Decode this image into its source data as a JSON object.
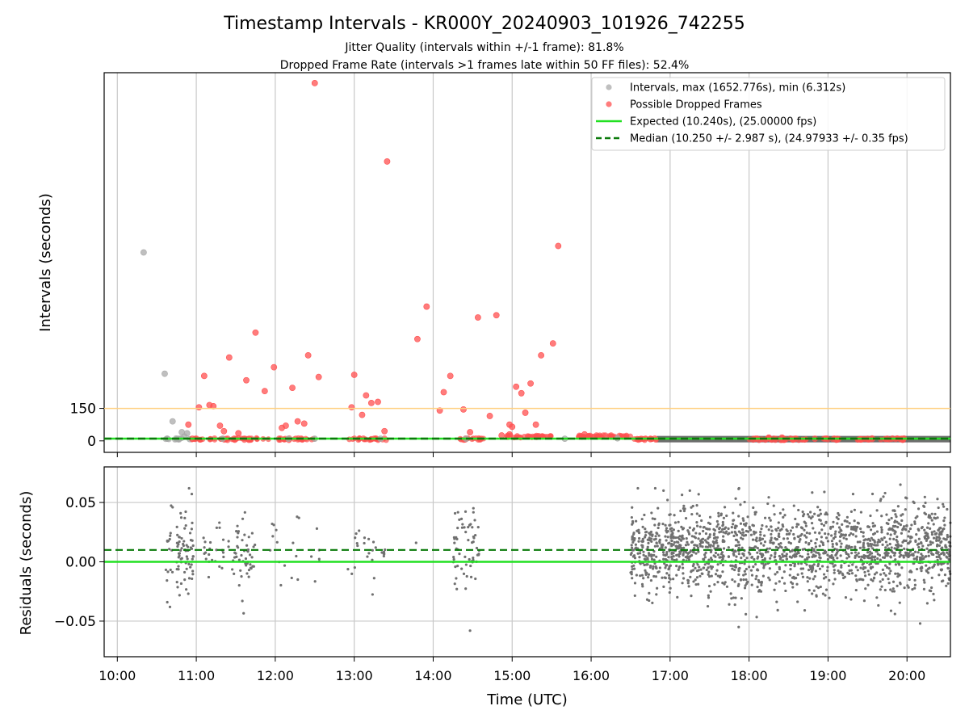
{
  "figure": {
    "title": "Timestamp Intervals - KR000Y_20240903_101926_742255",
    "subtitle_line1": "Jitter Quality (intervals within +/-1 frame): 81.8%",
    "subtitle_line2": "Dropped Frame Rate (intervals >1 frames late within 50 FF files): 52.4%"
  },
  "chart_data": [
    {
      "type": "scatter",
      "panel": "intervals",
      "title": "",
      "xlabel": "",
      "ylabel": "Intervals (seconds)",
      "xlim": [
        "09:50",
        "20:33"
      ],
      "ylim": [
        -53,
        1700
      ],
      "yticks": [
        0,
        150
      ],
      "ytick_labels": [
        "0",
        "150"
      ],
      "grid": "x",
      "legend_placement": "top-right",
      "legend": [
        {
          "label": "Intervals, max (1652.776s), min (6.312s)",
          "kind": "marker",
          "color": "#a9a9a9"
        },
        {
          "label": "Possible Dropped Frames",
          "kind": "marker",
          "color": "#ff5050"
        },
        {
          "label": "Expected (10.240s), (25.00000 fps)",
          "kind": "line",
          "color": "#22e022"
        },
        {
          "label": "Median (10.250 +/- 2.987 s), (24.97933 +/- 0.35 fps)",
          "kind": "dash",
          "color": "#0a7a0a"
        }
      ],
      "reference_lines": [
        {
          "name": "threshold",
          "y": 150,
          "color": "#ffd080"
        },
        {
          "name": "Expected",
          "y": 10.24,
          "color": "#22e022"
        },
        {
          "name": "Median",
          "y": 10.25,
          "color": "#0a7a0a"
        }
      ],
      "series": [
        {
          "name": "Intervals, max (1652.776s), min (6.312s)",
          "color": "#a9a9a9",
          "points": [
            [
              "10:20",
              870
            ],
            [
              "10:36",
              310
            ],
            [
              "10:38",
              10
            ],
            [
              "10:42",
              90
            ],
            [
              "10:47",
              10
            ],
            [
              "10:49",
              40
            ],
            [
              "10:51",
              20
            ],
            [
              "10:53",
              35
            ],
            [
              "10:55",
              8
            ],
            [
              "11:20",
              10
            ],
            [
              "12:10",
              10
            ],
            [
              "12:30",
              10
            ],
            [
              "13:20",
              10
            ],
            [
              "14:25",
              10
            ],
            [
              "15:40",
              10
            ],
            [
              "16:20",
              12
            ]
          ]
        },
        {
          "name": "Possible Dropped Frames",
          "color": "#ff5050",
          "points": [
            [
              "12:30",
              1652
            ],
            [
              "13:25",
              1290
            ],
            [
              "15:35",
              900
            ],
            [
              "10:54",
              75
            ],
            [
              "10:57",
              10
            ],
            [
              "11:02",
              155
            ],
            [
              "11:06",
              300
            ],
            [
              "11:10",
              165
            ],
            [
              "11:13",
              160
            ],
            [
              "11:18",
              70
            ],
            [
              "11:21",
              45
            ],
            [
              "11:25",
              385
            ],
            [
              "11:32",
              35
            ],
            [
              "11:38",
              280
            ],
            [
              "11:45",
              500
            ],
            [
              "11:52",
              230
            ],
            [
              "11:59",
              340
            ],
            [
              "12:05",
              60
            ],
            [
              "12:08",
              70
            ],
            [
              "12:13",
              245
            ],
            [
              "12:17",
              90
            ],
            [
              "12:22",
              80
            ],
            [
              "12:25",
              395
            ],
            [
              "12:33",
              295
            ],
            [
              "12:58",
              155
            ],
            [
              "13:00",
              305
            ],
            [
              "13:06",
              120
            ],
            [
              "13:09",
              210
            ],
            [
              "13:13",
              175
            ],
            [
              "13:18",
              180
            ],
            [
              "13:23",
              45
            ],
            [
              "13:48",
              470
            ],
            [
              "13:55",
              620
            ],
            [
              "14:05",
              140
            ],
            [
              "14:08",
              225
            ],
            [
              "14:13",
              300
            ],
            [
              "14:23",
              145
            ],
            [
              "14:28",
              40
            ],
            [
              "14:34",
              570
            ],
            [
              "14:43",
              115
            ],
            [
              "14:48",
              580
            ],
            [
              "14:52",
              25
            ],
            [
              "14:58",
              30
            ],
            [
              "14:58",
              75
            ],
            [
              "15:00",
              65
            ],
            [
              "15:03",
              250
            ],
            [
              "15:07",
              220
            ],
            [
              "15:10",
              130
            ],
            [
              "15:14",
              265
            ],
            [
              "15:18",
              75
            ],
            [
              "15:22",
              395
            ],
            [
              "15:31",
              450
            ],
            [
              "15:55",
              30
            ],
            [
              "15:58",
              20
            ],
            [
              "16:05",
              20
            ],
            [
              "16:15",
              20
            ],
            [
              "16:25",
              20
            ],
            [
              "16:35",
              8
            ],
            [
              "16:45",
              8
            ],
            [
              "18:05",
              10
            ],
            [
              "18:15",
              15
            ],
            [
              "18:25",
              15
            ],
            [
              "18:35",
              10
            ],
            [
              "18:50",
              10
            ],
            [
              "19:25",
              8
            ],
            [
              "19:45",
              10
            ],
            [
              "19:55",
              8
            ]
          ]
        }
      ],
      "clusters": [
        {
          "range": [
            "10:35",
            "10:50"
          ],
          "y": 8,
          "color": "#a9a9a9"
        },
        {
          "range": [
            "10:55",
            "11:05"
          ],
          "y": 8,
          "color": "#ff5050"
        },
        {
          "range": [
            "11:10",
            "11:55"
          ],
          "y": 8,
          "color": "#ff5050"
        },
        {
          "range": [
            "12:00",
            "12:30"
          ],
          "y": 8,
          "color": "#ff5050"
        },
        {
          "range": [
            "12:55",
            "13:25"
          ],
          "y": 8,
          "color": "#ff5050"
        },
        {
          "range": [
            "14:20",
            "14:40"
          ],
          "y": 8,
          "color": "#ff5050"
        },
        {
          "range": [
            "14:55",
            "15:30"
          ],
          "y": 20,
          "color": "#ff5050"
        },
        {
          "range": [
            "15:50",
            "16:30"
          ],
          "y": 22,
          "color": "#ff5050"
        },
        {
          "range": [
            "16:30",
            "16:50"
          ],
          "y": 8,
          "color": "#ff5050"
        },
        {
          "range": [
            "18:00",
            "18:45"
          ],
          "y": 8,
          "color": "#ff5050"
        },
        {
          "range": [
            "18:55",
            "19:10"
          ],
          "y": 8,
          "color": "#ff5050"
        },
        {
          "range": [
            "19:20",
            "19:35"
          ],
          "y": 8,
          "color": "#ff5050"
        },
        {
          "range": [
            "19:40",
            "19:58"
          ],
          "y": 8,
          "color": "#ff5050"
        }
      ],
      "dense_band": {
        "range": [
          "16:50",
          "20:33"
        ],
        "y": 8,
        "color": "#555555"
      }
    },
    {
      "type": "scatter",
      "panel": "residuals",
      "title": "",
      "xlabel": "Time (UTC)",
      "ylabel": "Residuals (seconds)",
      "xlim": [
        "09:50",
        "20:33"
      ],
      "ylim": [
        -0.08,
        0.08
      ],
      "yticks": [
        0.05,
        0.0,
        -0.05
      ],
      "ytick_labels": [
        "0.05",
        "0.00",
        "−0.05"
      ],
      "xticks": [
        "10:00",
        "11:00",
        "12:00",
        "13:00",
        "14:00",
        "15:00",
        "16:00",
        "17:00",
        "18:00",
        "19:00",
        "20:00"
      ],
      "xtick_labels": [
        "10:00",
        "11:00",
        "12:00",
        "13:00",
        "14:00",
        "15:00",
        "16:00",
        "17:00",
        "18:00",
        "19:00",
        "20:00"
      ],
      "grid": "both",
      "reference_lines": [
        {
          "name": "Expected",
          "y": 0.0,
          "color": "#22e022"
        },
        {
          "name": "Median",
          "y": 0.01,
          "color": "#0a7a0a"
        }
      ],
      "color": "#707070",
      "clusters": [
        {
          "range": [
            "10:35",
            "10:42"
          ],
          "count": 15,
          "spread": 0.045
        },
        {
          "range": [
            "10:45",
            "10:58"
          ],
          "count": 70,
          "spread": 0.035
        },
        {
          "range": [
            "11:05",
            "11:30"
          ],
          "count": 30,
          "spread": 0.025
        },
        {
          "range": [
            "11:30",
            "11:45"
          ],
          "count": 45,
          "spread": 0.035
        },
        {
          "range": [
            "11:55",
            "12:35"
          ],
          "count": 20,
          "spread": 0.03
        },
        {
          "range": [
            "12:55",
            "13:25"
          ],
          "count": 25,
          "spread": 0.025
        },
        {
          "range": [
            "14:15",
            "14:35"
          ],
          "count": 60,
          "spread": 0.04
        },
        {
          "range": [
            "16:30",
            "20:33"
          ],
          "count": 1700,
          "spread": 0.04
        }
      ],
      "outliers": [
        [
          "10:40",
          -0.038
        ],
        [
          "10:42",
          0.046
        ],
        [
          "11:35",
          -0.033
        ],
        [
          "12:18",
          0.037
        ],
        [
          "13:47",
          0.016
        ],
        [
          "14:28",
          -0.058
        ],
        [
          "16:55",
          0.06
        ],
        [
          "17:15",
          0.06
        ],
        [
          "19:55",
          0.065
        ],
        [
          "20:10",
          -0.052
        ]
      ]
    }
  ]
}
